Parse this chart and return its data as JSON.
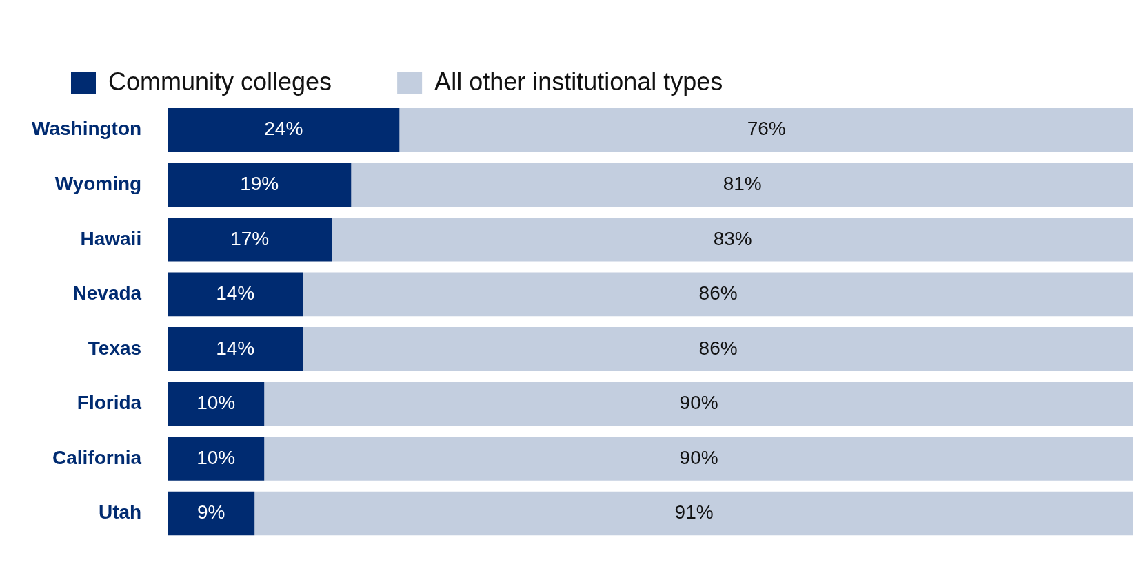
{
  "chart_data": {
    "type": "bar",
    "orientation": "horizontal",
    "stacked": true,
    "legend": "top",
    "tick_labels": "y",
    "grid": false,
    "categories": [
      "Washington",
      "Wyoming",
      "Hawaii",
      "Nevada",
      "Texas",
      "Florida",
      "California",
      "Utah"
    ],
    "xlim": [
      0,
      100
    ],
    "series": [
      {
        "name": "Community colleges",
        "color": "#002b71",
        "values": [
          24,
          19,
          17,
          14,
          14,
          10,
          10,
          9
        ],
        "value_labels": [
          "24%",
          "19%",
          "17%",
          "14%",
          "14%",
          "10%",
          "10%",
          "9%"
        ]
      },
      {
        "name": "All other institutional types",
        "color": "#c3cedf",
        "values": [
          76,
          81,
          83,
          86,
          86,
          90,
          90,
          91
        ],
        "value_labels": [
          "76%",
          "81%",
          "83%",
          "86%",
          "86%",
          "90%",
          "90%",
          "91%"
        ]
      }
    ]
  }
}
